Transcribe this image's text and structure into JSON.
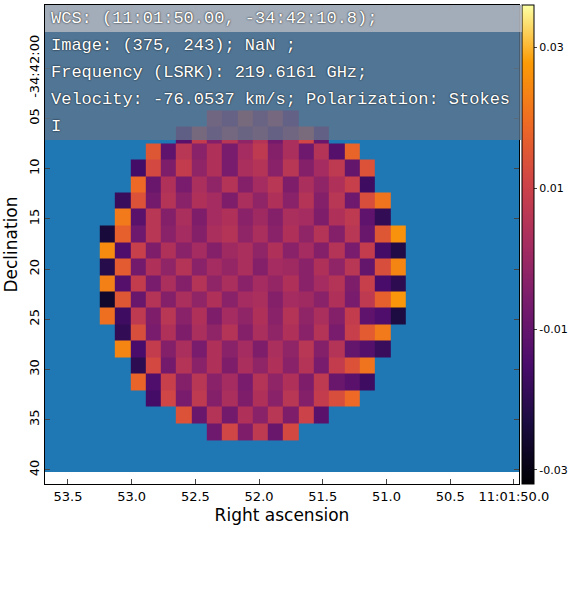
{
  "chart_data": {
    "type": "heatmap",
    "x_label": "Right ascension",
    "y_label": "Declination",
    "info_box": [
      "WCS: (11:01:50.00, -34:42:10.8);",
      "Image: (375, 243); NaN ;",
      "Frequency (LSRK): 219.6161 GHz;",
      "Velocity: -76.0537 km/s; Polarization: Stokes",
      "I"
    ],
    "xlim": [
      53.68,
      49.96
    ],
    "ylim": [
      41.4,
      -6.3
    ],
    "xticks": [
      53.5,
      {
        "value": 53.0,
        "label": "53.0"
      },
      52.5,
      {
        "value": 52.0,
        "label": "52.0"
      },
      51.5,
      {
        "value": 51.0,
        "label": "51.0"
      },
      50.5,
      {
        "value": 50.0,
        "label": "11:01:50.0"
      }
    ],
    "yticks": [
      {
        "value": 0,
        "label": "-34:42:00"
      },
      {
        "value": 5,
        "label": "05"
      },
      10,
      15,
      20,
      25,
      30,
      35,
      40
    ],
    "nan_region": {
      "color": "#1f78b4",
      "x": [
        53.68,
        49.96
      ],
      "y": [
        -6.3,
        40.2
      ]
    },
    "zlim": [
      -0.032,
      0.036
    ],
    "colorbar_ticks": [
      0.03,
      0.01,
      -0.01,
      -0.03
    ],
    "x": [
      53.19,
      53.07,
      52.95,
      52.83,
      52.71,
      52.59,
      52.47,
      52.35,
      52.23,
      52.11,
      51.99,
      51.87,
      51.75,
      51.63,
      51.51,
      51.39,
      51.27,
      51.15,
      51.03,
      50.91
    ],
    "y": [
      5.0,
      6.6,
      8.3,
      9.9,
      11.6,
      13.2,
      14.8,
      16.5,
      18.1,
      19.8,
      21.4,
      23.0,
      24.7,
      26.3,
      28.0,
      29.6,
      31.2,
      32.9,
      34.5,
      36.2
    ],
    "z": [
      [
        null,
        null,
        null,
        null,
        null,
        null,
        null,
        0.004,
        -0.006,
        0.009,
        -0.003,
        0.007,
        -0.008,
        null,
        null,
        null,
        null,
        null,
        null,
        null
      ],
      [
        null,
        null,
        null,
        null,
        null,
        -0.012,
        0.008,
        -0.004,
        0.006,
        -0.002,
        0.005,
        -0.007,
        0.003,
        0.011,
        -0.009,
        null,
        null,
        null,
        null,
        null
      ],
      [
        null,
        null,
        null,
        0.015,
        -0.011,
        0.006,
        -0.003,
        0.004,
        -0.006,
        0.002,
        0.007,
        -0.004,
        0.003,
        -0.008,
        0.005,
        -0.013,
        0.018,
        null,
        null,
        null
      ],
      [
        null,
        null,
        -0.016,
        0.012,
        -0.005,
        0.008,
        -0.002,
        0.004,
        -0.006,
        0.003,
        0.005,
        -0.003,
        0.006,
        -0.004,
        0.002,
        0.007,
        -0.01,
        0.014,
        null,
        null
      ],
      [
        null,
        null,
        0.019,
        -0.009,
        0.004,
        -0.006,
        0.003,
        -0.002,
        0.005,
        -0.004,
        0.002,
        0.006,
        -0.005,
        0.003,
        -0.002,
        0.004,
        0.009,
        -0.017,
        null,
        null
      ],
      [
        null,
        -0.018,
        0.014,
        -0.007,
        0.005,
        -0.003,
        0.004,
        0.002,
        -0.005,
        0.003,
        -0.002,
        0.004,
        -0.003,
        0.005,
        -0.004,
        0.006,
        -0.008,
        0.013,
        0.021,
        null
      ],
      [
        null,
        0.022,
        -0.012,
        0.006,
        -0.004,
        0.003,
        -0.005,
        0.002,
        0.004,
        -0.003,
        0.001,
        -0.004,
        0.003,
        0.002,
        -0.005,
        0.004,
        0.007,
        -0.011,
        -0.019,
        null
      ],
      [
        -0.024,
        0.017,
        -0.008,
        0.006,
        -0.003,
        0.002,
        -0.004,
        0.003,
        0.005,
        -0.002,
        0.003,
        -0.003,
        0.004,
        -0.002,
        0.005,
        -0.004,
        0.006,
        -0.009,
        0.015,
        0.026
      ],
      [
        0.025,
        -0.014,
        0.009,
        -0.005,
        0.004,
        -0.003,
        0.002,
        -0.004,
        0.001,
        0.003,
        -0.002,
        0.004,
        -0.003,
        0.002,
        -0.004,
        0.005,
        -0.006,
        0.008,
        -0.016,
        -0.022
      ],
      [
        -0.021,
        0.016,
        -0.007,
        0.004,
        -0.002,
        0.005,
        -0.003,
        0.002,
        -0.001,
        0.003,
        -0.004,
        0.002,
        0.001,
        -0.003,
        0.004,
        -0.002,
        0.006,
        -0.01,
        0.013,
        0.024
      ],
      [
        0.023,
        -0.013,
        0.008,
        -0.006,
        0.003,
        -0.004,
        0.005,
        -0.002,
        0.003,
        -0.003,
        0.002,
        -0.001,
        0.004,
        -0.003,
        0.002,
        0.005,
        -0.005,
        0.009,
        -0.015,
        -0.02
      ],
      [
        -0.026,
        0.015,
        -0.009,
        0.005,
        -0.004,
        0.003,
        -0.002,
        0.004,
        -0.003,
        0.002,
        0.003,
        -0.004,
        0.002,
        0.001,
        -0.003,
        0.004,
        -0.006,
        0.007,
        0.017,
        0.027
      ],
      [
        0.02,
        -0.017,
        0.007,
        -0.005,
        0.006,
        -0.003,
        0.004,
        -0.005,
        0.002,
        -0.002,
        0.004,
        -0.003,
        0.005,
        -0.002,
        0.003,
        -0.004,
        0.008,
        -0.011,
        -0.014,
        -0.023
      ],
      [
        null,
        -0.019,
        0.013,
        -0.006,
        0.004,
        -0.005,
        0.003,
        -0.002,
        0.005,
        -0.004,
        0.003,
        -0.002,
        0.004,
        -0.003,
        0.005,
        -0.006,
        0.009,
        0.016,
        0.022,
        null
      ],
      [
        null,
        0.024,
        -0.015,
        0.008,
        -0.004,
        0.003,
        -0.006,
        0.004,
        -0.003,
        0.002,
        -0.005,
        0.003,
        -0.002,
        0.006,
        -0.004,
        0.005,
        -0.01,
        -0.013,
        -0.018,
        null
      ],
      [
        null,
        null,
        -0.02,
        0.012,
        -0.007,
        0.005,
        -0.003,
        0.004,
        -0.005,
        0.003,
        -0.002,
        0.004,
        -0.003,
        0.005,
        -0.006,
        0.008,
        0.014,
        0.021,
        null,
        null
      ],
      [
        null,
        null,
        0.018,
        -0.014,
        0.009,
        -0.004,
        0.006,
        -0.003,
        0.002,
        -0.006,
        0.005,
        -0.002,
        0.004,
        -0.005,
        0.007,
        -0.009,
        -0.012,
        -0.017,
        null,
        null
      ],
      [
        null,
        null,
        null,
        -0.016,
        0.011,
        -0.006,
        0.007,
        -0.004,
        0.003,
        -0.005,
        0.004,
        -0.003,
        0.006,
        -0.004,
        0.008,
        0.013,
        0.019,
        null,
        null,
        null
      ],
      [
        null,
        null,
        null,
        null,
        null,
        0.014,
        -0.009,
        0.005,
        -0.007,
        0.004,
        -0.003,
        0.006,
        -0.005,
        0.01,
        -0.012,
        null,
        null,
        null,
        null,
        null
      ],
      [
        null,
        null,
        null,
        null,
        null,
        null,
        null,
        -0.008,
        0.011,
        -0.005,
        0.007,
        -0.009,
        0.012,
        null,
        null,
        null,
        null,
        null,
        null,
        null
      ]
    ]
  }
}
